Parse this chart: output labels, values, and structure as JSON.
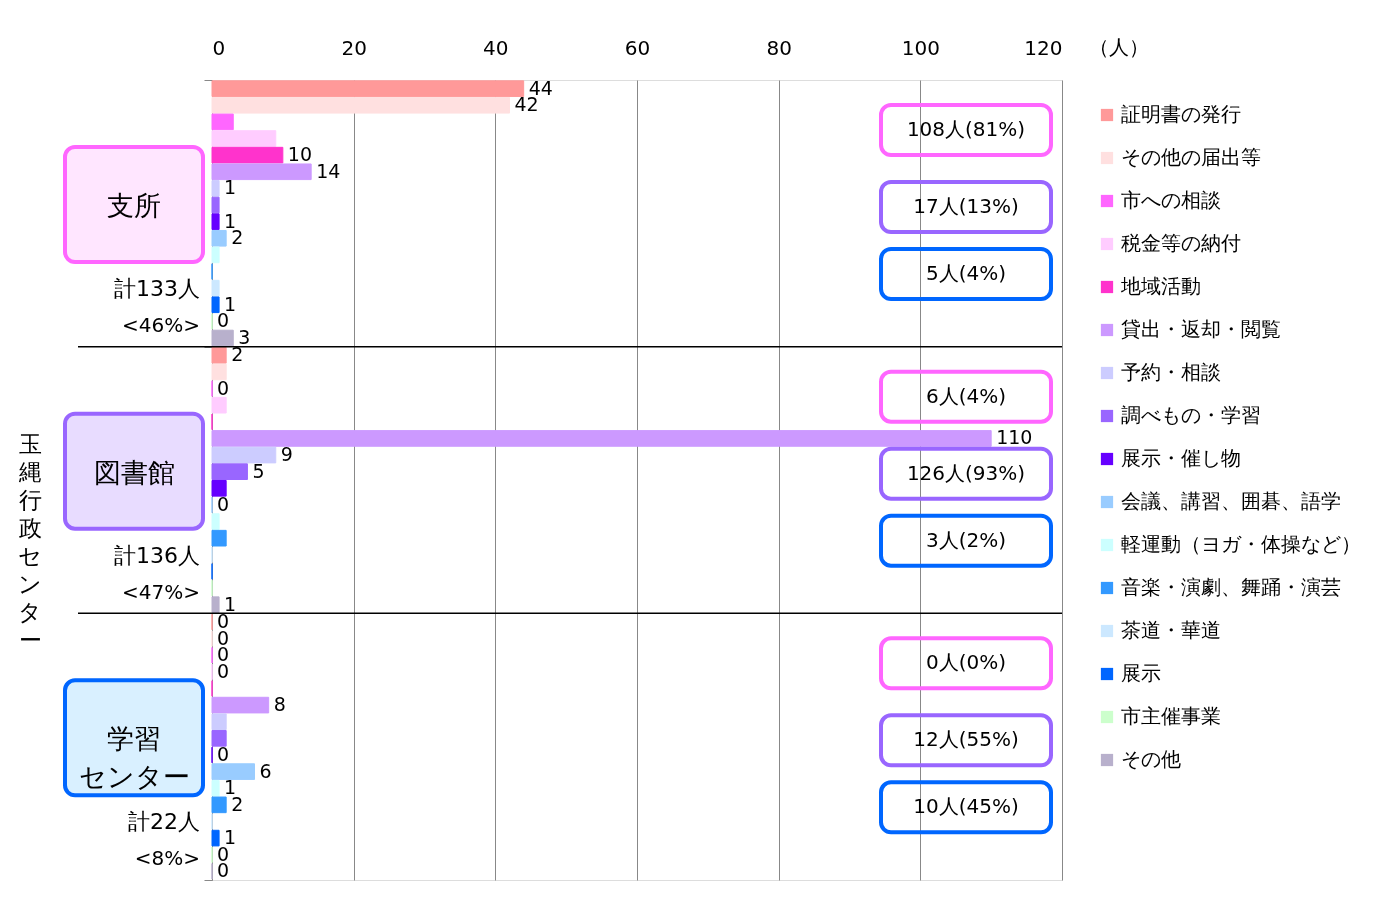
{
  "chart_data": {
    "type": "bar",
    "orientation": "horizontal",
    "ylabel": "玉縄行政センター",
    "xlabel": "（人）",
    "categories": [
      "支所",
      "図書館",
      "学習センター"
    ],
    "xlim": [
      0,
      120
    ],
    "xticks": [
      0,
      20,
      40,
      60,
      80,
      100,
      120
    ],
    "grid": "x",
    "legend": "right",
    "series": [
      {
        "name": "証明書の発行",
        "color": "#ff9999",
        "values": [
          44,
          2,
          0
        ],
        "value_labels": [
          "44",
          "2",
          "0"
        ]
      },
      {
        "name": "その他の届出等",
        "color": "#ffe0e0",
        "values": [
          42,
          2,
          0
        ],
        "value_labels": [
          "42",
          null,
          "0"
        ]
      },
      {
        "name": "市への相談",
        "color": "#ff66ff",
        "values": [
          3,
          0,
          0
        ],
        "value_labels": [
          null,
          "0",
          "0"
        ]
      },
      {
        "name": "税金等の納付",
        "color": "#ffccff",
        "values": [
          9,
          2,
          0
        ],
        "value_labels": [
          null,
          null,
          "0"
        ]
      },
      {
        "name": "地域活動",
        "color": "#ff33cc",
        "values": [
          10,
          0,
          0
        ],
        "value_labels": [
          "10",
          null,
          null
        ]
      },
      {
        "name": "貸出・返却・閲覧",
        "color": "#cc99ff",
        "values": [
          14,
          110,
          8
        ],
        "value_labels": [
          "14",
          "110",
          "8"
        ]
      },
      {
        "name": "予約・相談",
        "color": "#ccccff",
        "values": [
          1,
          9,
          2
        ],
        "value_labels": [
          "1",
          "9",
          null
        ]
      },
      {
        "name": "調べもの・学習",
        "color": "#9966ff",
        "values": [
          1,
          5,
          2
        ],
        "value_labels": [
          null,
          "5",
          null
        ]
      },
      {
        "name": "展示・催し物",
        "color": "#6600ff",
        "values": [
          1,
          2,
          0
        ],
        "value_labels": [
          "1",
          null,
          "0"
        ]
      },
      {
        "name": "会議、講習、囲碁、語学",
        "color": "#99ccff",
        "values": [
          2,
          0,
          6
        ],
        "value_labels": [
          "2",
          "0",
          "6"
        ]
      },
      {
        "name": "軽運動（ヨガ・体操など）",
        "color": "#ccffff",
        "values": [
          1,
          1,
          1
        ],
        "value_labels": [
          null,
          null,
          "1"
        ]
      },
      {
        "name": "音楽・演劇、舞踊・演芸",
        "color": "#3399ff",
        "values": [
          0,
          2,
          2
        ],
        "value_labels": [
          null,
          null,
          "2"
        ]
      },
      {
        "name": "茶道・華道",
        "color": "#cce8ff",
        "values": [
          1,
          0,
          0
        ],
        "value_labels": [
          null,
          null,
          null
        ]
      },
      {
        "name": "展示",
        "color": "#0066ff",
        "values": [
          1,
          0,
          1
        ],
        "value_labels": [
          "1",
          null,
          "1"
        ]
      },
      {
        "name": "市主催事業",
        "color": "#ccffcc",
        "values": [
          0,
          0,
          0
        ],
        "value_labels": [
          "0",
          null,
          "0"
        ]
      },
      {
        "name": "その他",
        "color": "#b8b0cc",
        "values": [
          3,
          1,
          0
        ],
        "value_labels": [
          "3",
          "1",
          "0"
        ]
      }
    ],
    "annotations": [
      "計133人",
      "<46%>",
      "108人(81%)",
      "17人(13%)",
      "5人(4%)",
      "計136人",
      "<47%>",
      "6人(4%)",
      "126人(93%)",
      "3人(2%)",
      "計22人",
      "<8%>",
      "0人(0%)",
      "12人(55%)",
      "10人(45%)"
    ]
  }
}
